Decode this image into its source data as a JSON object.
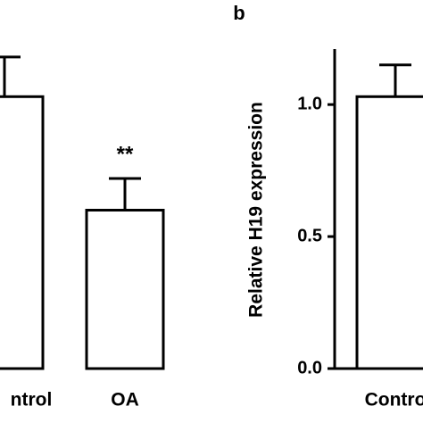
{
  "chart_data": [
    {
      "type": "bar",
      "categories": [
        "ntrol",
        "OA"
      ],
      "values": [
        1.03,
        0.6
      ],
      "errors": [
        0.15,
        0.12
      ],
      "annotations": [
        null,
        "**"
      ],
      "color": "#ffffff",
      "ylim": [
        0,
        1.2
      ]
    },
    {
      "type": "bar",
      "panel": "b",
      "ylabel": "Relative H19 expression",
      "categories": [
        "Contro"
      ],
      "values": [
        1.03
      ],
      "errors": [
        0.12
      ],
      "color": "#ffffff",
      "ylim": [
        0,
        1.2
      ],
      "yticks": [
        {
          "value": 0,
          "label": "0.0"
        },
        {
          "value": 0.5,
          "label": "0.5"
        },
        {
          "value": 1,
          "label": "1.0"
        }
      ]
    }
  ]
}
